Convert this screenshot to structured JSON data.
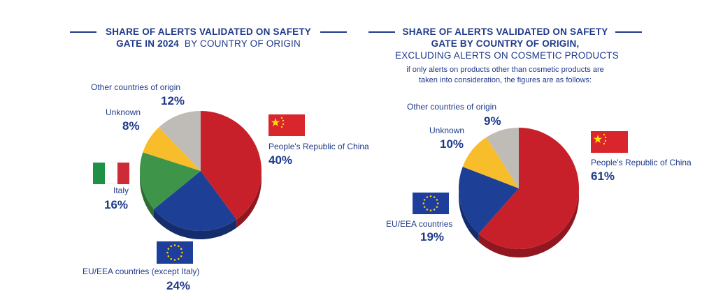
{
  "chart_data": [
    {
      "type": "pie",
      "title_bold_lines": [
        "SHARE OF ALERTS VALIDATED ON SAFETY",
        "GATE IN 2024"
      ],
      "title_regular": "BY COUNTRY OF ORIGIN",
      "slices": [
        {
          "label": "People's Republic of China",
          "value": 40,
          "display": "40%",
          "color": "#c8202b"
        },
        {
          "label": "EU/EEA countries (except Italy)",
          "value": 24,
          "display": "24%",
          "color": "#1e3f96"
        },
        {
          "label": "Italy",
          "value": 16,
          "display": "16%",
          "color": "#3e9448"
        },
        {
          "label": "Unknown",
          "value": 8,
          "display": "8%",
          "color": "#f7bd2b"
        },
        {
          "label": "Other countries of origin",
          "value": 12,
          "display": "12%",
          "color": "#bfbbb6"
        }
      ]
    },
    {
      "type": "pie",
      "title_bold_lines": [
        "SHARE OF ALERTS VALIDATED ON SAFETY",
        "GATE BY COUNTRY OF ORIGIN,"
      ],
      "title_regular": "EXCLUDING ALERTS ON COSMETIC PRODUCTS",
      "note_lines": [
        "if only alerts on products other than cosmetic products are",
        "taken into consideration, the figures are as follows:"
      ],
      "slices": [
        {
          "label": "People's Republic of China",
          "value": 61,
          "display": "61%",
          "color": "#c8202b"
        },
        {
          "label": "EU/EEA countries",
          "value": 19,
          "display": "19%",
          "color": "#1e3f96"
        },
        {
          "label": "Unknown",
          "value": 10,
          "display": "10%",
          "color": "#f7bd2b"
        },
        {
          "label": "Other countries of origin",
          "value": 9,
          "display": "9%",
          "color": "#bfbbb6"
        }
      ]
    }
  ],
  "flags": {
    "china": {
      "red": "#d8262c",
      "yellow": "#ffde00"
    },
    "italy": {
      "green": "#1f9146",
      "white": "#ffffff",
      "red": "#cd2b37"
    },
    "eu": {
      "blue": "#1e3e9c",
      "yellow": "#ffcc00"
    }
  }
}
